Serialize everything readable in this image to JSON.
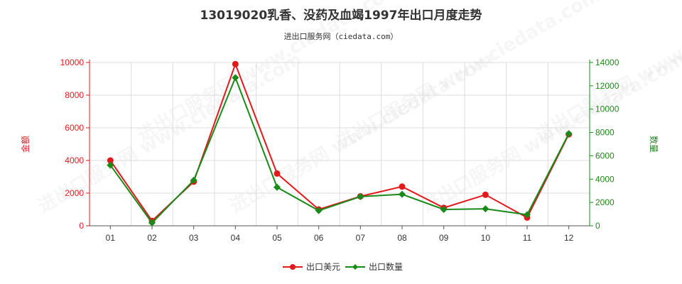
{
  "chart_data": {
    "type": "line",
    "title": "13019020乳香、没药及血竭1997年出口月度走势",
    "subtitle": "进出口服务网（ciedata.com）",
    "watermark": "进出口服务网 www.ciedata.com",
    "categories": [
      "01",
      "02",
      "03",
      "04",
      "05",
      "06",
      "07",
      "08",
      "09",
      "10",
      "11",
      "12"
    ],
    "y_left": {
      "label": "金额",
      "min": 0,
      "max": 10000,
      "ticks": [
        0,
        2000,
        4000,
        6000,
        8000,
        10000
      ]
    },
    "y_right": {
      "label": "数量",
      "min": 0,
      "max": 14000,
      "ticks": [
        0,
        2000,
        4000,
        6000,
        8000,
        10000,
        12000,
        14000
      ]
    },
    "grid": true,
    "legend_position": "bottom-center",
    "series": [
      {
        "name": "出口美元",
        "axis": "left",
        "color": "#e3191c",
        "marker": "circle",
        "values": [
          4000,
          300,
          2700,
          9900,
          3200,
          1000,
          1800,
          2400,
          1100,
          1900,
          500,
          5600
        ]
      },
      {
        "name": "出口数量",
        "axis": "right",
        "color": "#1a8a1a",
        "marker": "diamond",
        "values": [
          5200,
          250,
          3900,
          12700,
          3300,
          1300,
          2500,
          2700,
          1400,
          1450,
          950,
          7900
        ]
      }
    ]
  }
}
